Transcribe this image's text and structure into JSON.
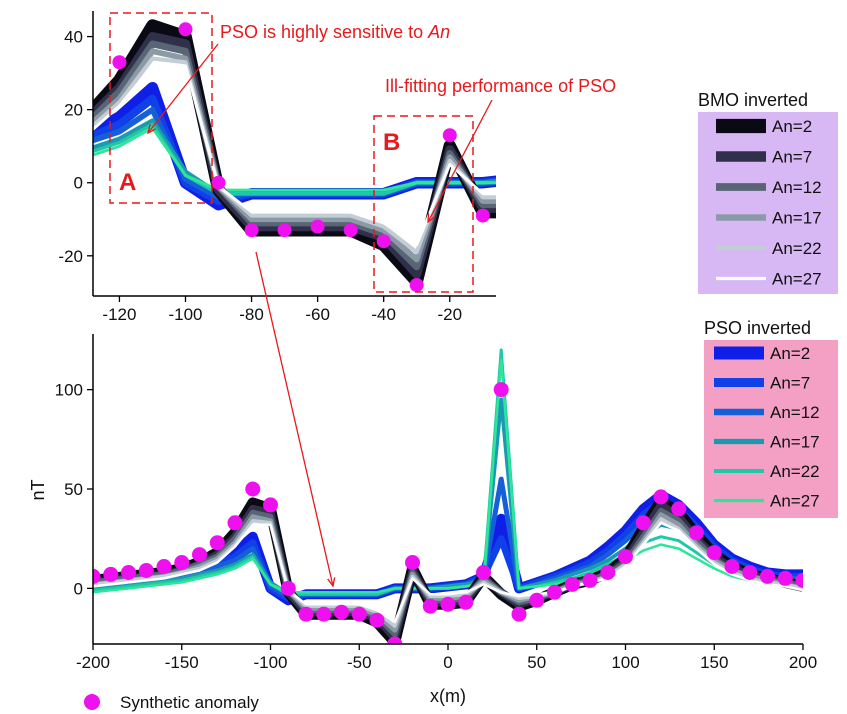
{
  "chart_data": [
    {
      "type": "line",
      "panel": "inset",
      "xlabel": "",
      "ylabel": "",
      "xlim": [
        -128,
        -6
      ],
      "ylim": [
        -31,
        47
      ],
      "x_ticks": [
        -120,
        -100,
        -80,
        -60,
        -40,
        -20
      ],
      "y_ticks": [
        -20,
        0,
        20,
        40
      ],
      "annotations": {
        "sensitive_prefix": "PSO is highly sensitive to ",
        "sensitive_italic": "An",
        "ill_fitting": "Ill-fitting performance of PSO",
        "box_a": "A",
        "box_b": "B"
      }
    },
    {
      "type": "line",
      "panel": "main",
      "xlabel": "x(m)",
      "ylabel": "nT",
      "xlim": [
        -200,
        200
      ],
      "ylim": [
        -28,
        128
      ],
      "x_ticks": [
        -200,
        -150,
        -100,
        -50,
        0,
        50,
        100,
        150,
        200
      ],
      "y_ticks": [
        0,
        50,
        100
      ],
      "synthetic": {
        "name": "Synthetic anomaly",
        "x": [
          -200,
          -190,
          -180,
          -170,
          -160,
          -150,
          -140,
          -130,
          -120,
          -110,
          -100,
          -90,
          -80,
          -70,
          -60,
          -50,
          -40,
          -30,
          -20,
          -10,
          0,
          10,
          20,
          30,
          40,
          50,
          60,
          70,
          80,
          90,
          100,
          110,
          120,
          130,
          140,
          150,
          160,
          170,
          180,
          190,
          200
        ],
        "y": [
          6,
          7,
          8,
          9,
          11,
          13,
          17,
          23,
          33,
          50,
          42,
          0,
          -13,
          -13,
          -12,
          -13,
          -16,
          -28,
          13,
          -9,
          -8,
          -7,
          8,
          100,
          -13,
          -6,
          -2,
          2,
          4,
          8,
          16,
          33,
          46,
          40,
          28,
          18,
          11,
          8,
          6,
          5,
          4
        ]
      },
      "bmo_series": [
        {
          "name": "An=2",
          "color": "#0a0a14",
          "values": [
            4,
            5,
            6,
            7,
            8,
            10,
            13,
            18,
            28,
            43,
            40,
            -2,
            -13,
            -13,
            -13,
            -13,
            -17,
            -27,
            10,
            -8,
            -8,
            -7,
            6,
            -3,
            -9,
            -6,
            -2,
            2,
            4,
            8,
            15,
            30,
            44,
            38,
            27,
            17,
            11,
            7,
            5,
            3,
            1
          ]
        },
        {
          "name": "An=7",
          "color": "#30304a",
          "values": [
            3,
            4,
            5,
            6,
            7,
            9,
            12,
            17,
            26,
            40,
            38,
            -2,
            -12,
            -12,
            -12,
            -12,
            -15,
            -25,
            9,
            -7,
            -7,
            -6,
            5,
            -2,
            -8,
            -5,
            -2,
            2,
            4,
            7,
            14,
            28,
            42,
            36,
            25,
            16,
            10,
            7,
            5,
            3,
            1
          ]
        },
        {
          "name": "An=12",
          "color": "#596574",
          "values": [
            3,
            4,
            5,
            6,
            7,
            9,
            12,
            16,
            25,
            38,
            36,
            -1,
            -11,
            -11,
            -11,
            -11,
            -14,
            -23,
            8,
            -6,
            -6,
            -5,
            5,
            -2,
            -7,
            -5,
            -2,
            2,
            4,
            7,
            13,
            26,
            39,
            34,
            24,
            15,
            9,
            6,
            4,
            3,
            1
          ]
        },
        {
          "name": "An=17",
          "color": "#8c9aa8",
          "values": [
            2,
            3,
            4,
            5,
            6,
            8,
            11,
            15,
            23,
            36,
            34,
            -1,
            -10,
            -10,
            -10,
            -10,
            -13,
            -21,
            7,
            -5,
            -5,
            -4,
            4,
            -2,
            -6,
            -4,
            -2,
            2,
            3,
            6,
            12,
            24,
            37,
            32,
            22,
            14,
            9,
            6,
            4,
            2,
            0
          ]
        },
        {
          "name": "An=22",
          "color": "#c2cdd5",
          "values": [
            2,
            3,
            4,
            5,
            6,
            8,
            10,
            14,
            22,
            34,
            33,
            -1,
            -9,
            -9,
            -9,
            -9,
            -12,
            -19,
            6,
            -4,
            -4,
            -3,
            3,
            -2,
            -5,
            -4,
            -2,
            1,
            3,
            6,
            12,
            23,
            35,
            30,
            21,
            13,
            8,
            5,
            3,
            2,
            0
          ]
        },
        {
          "name": "An=27",
          "color": "#ffffff",
          "values": [
            1,
            2,
            3,
            4,
            5,
            7,
            9,
            13,
            21,
            32,
            32,
            -1,
            -8,
            -8,
            -8,
            -8,
            -11,
            -17,
            5,
            -3,
            -3,
            -2,
            2,
            -2,
            -4,
            -3,
            -2,
            1,
            3,
            5,
            11,
            22,
            33,
            29,
            20,
            12,
            7,
            4,
            2,
            1,
            -1
          ]
        }
      ],
      "pso_series": [
        {
          "name": "An=2",
          "color": "#0f1fe8",
          "values": [
            2,
            3,
            4,
            5,
            6,
            8,
            10,
            13,
            18,
            26,
            0,
            -6,
            -3,
            -3,
            -3,
            -3,
            -3,
            0,
            0,
            0,
            1,
            2,
            6,
            35,
            0,
            3,
            6,
            10,
            14,
            21,
            29,
            40,
            47,
            42,
            33,
            22,
            15,
            11,
            8,
            7,
            7
          ]
        },
        {
          "name": "An=7",
          "color": "#1040e8",
          "values": [
            2,
            3,
            4,
            5,
            6,
            8,
            10,
            12,
            16,
            23,
            0,
            -5,
            -3,
            -3,
            -3,
            -3,
            -3,
            0,
            0,
            0,
            1,
            2,
            6,
            25,
            0,
            3,
            6,
            9,
            13,
            19,
            27,
            37,
            44,
            40,
            31,
            21,
            14,
            10,
            7,
            6,
            6
          ]
        },
        {
          "name": "An=12",
          "color": "#1560d8",
          "values": [
            1,
            2,
            3,
            4,
            5,
            7,
            9,
            11,
            14,
            20,
            1,
            -4,
            -3,
            -3,
            -3,
            -3,
            -3,
            0,
            0,
            0,
            1,
            2,
            5,
            55,
            0,
            2,
            5,
            8,
            11,
            17,
            24,
            33,
            40,
            36,
            28,
            19,
            12,
            9,
            6,
            5,
            5
          ]
        },
        {
          "name": "An=17",
          "color": "#1a9ab0",
          "values": [
            0,
            1,
            2,
            3,
            4,
            5,
            7,
            9,
            12,
            17,
            3,
            -3,
            -3,
            -3,
            -3,
            -3,
            -3,
            0,
            0,
            0,
            1,
            2,
            4,
            95,
            0,
            2,
            4,
            7,
            10,
            14,
            20,
            27,
            32,
            30,
            23,
            16,
            10,
            7,
            5,
            4,
            4
          ]
        },
        {
          "name": "An=22",
          "color": "#1ec8a8",
          "values": [
            -1,
            0,
            1,
            2,
            3,
            4,
            6,
            8,
            11,
            16,
            2,
            -3,
            -3,
            -3,
            -3,
            -3,
            -3,
            0,
            0,
            0,
            0,
            1,
            3,
            120,
            0,
            1,
            3,
            5,
            8,
            12,
            17,
            23,
            26,
            24,
            18,
            12,
            8,
            5,
            4,
            3,
            3
          ]
        },
        {
          "name": "An=27",
          "color": "#2ee59a",
          "values": [
            -2,
            -1,
            0,
            1,
            2,
            3,
            5,
            7,
            10,
            15,
            2,
            -2,
            -2,
            -2,
            -2,
            -2,
            -2,
            0,
            0,
            0,
            0,
            1,
            2,
            115,
            0,
            1,
            2,
            4,
            7,
            10,
            14,
            19,
            22,
            20,
            15,
            10,
            6,
            4,
            3,
            2,
            2
          ]
        }
      ]
    }
  ],
  "legends": {
    "bmo_title": "BMO inverted",
    "pso_title": "PSO inverted",
    "bmo_bg": "#d8b8f4",
    "pso_bg": "#f4a0c4",
    "synthetic_label": "Synthetic anomaly",
    "marker_color": "#ee10ee",
    "annotation_color": "#e8191c"
  }
}
